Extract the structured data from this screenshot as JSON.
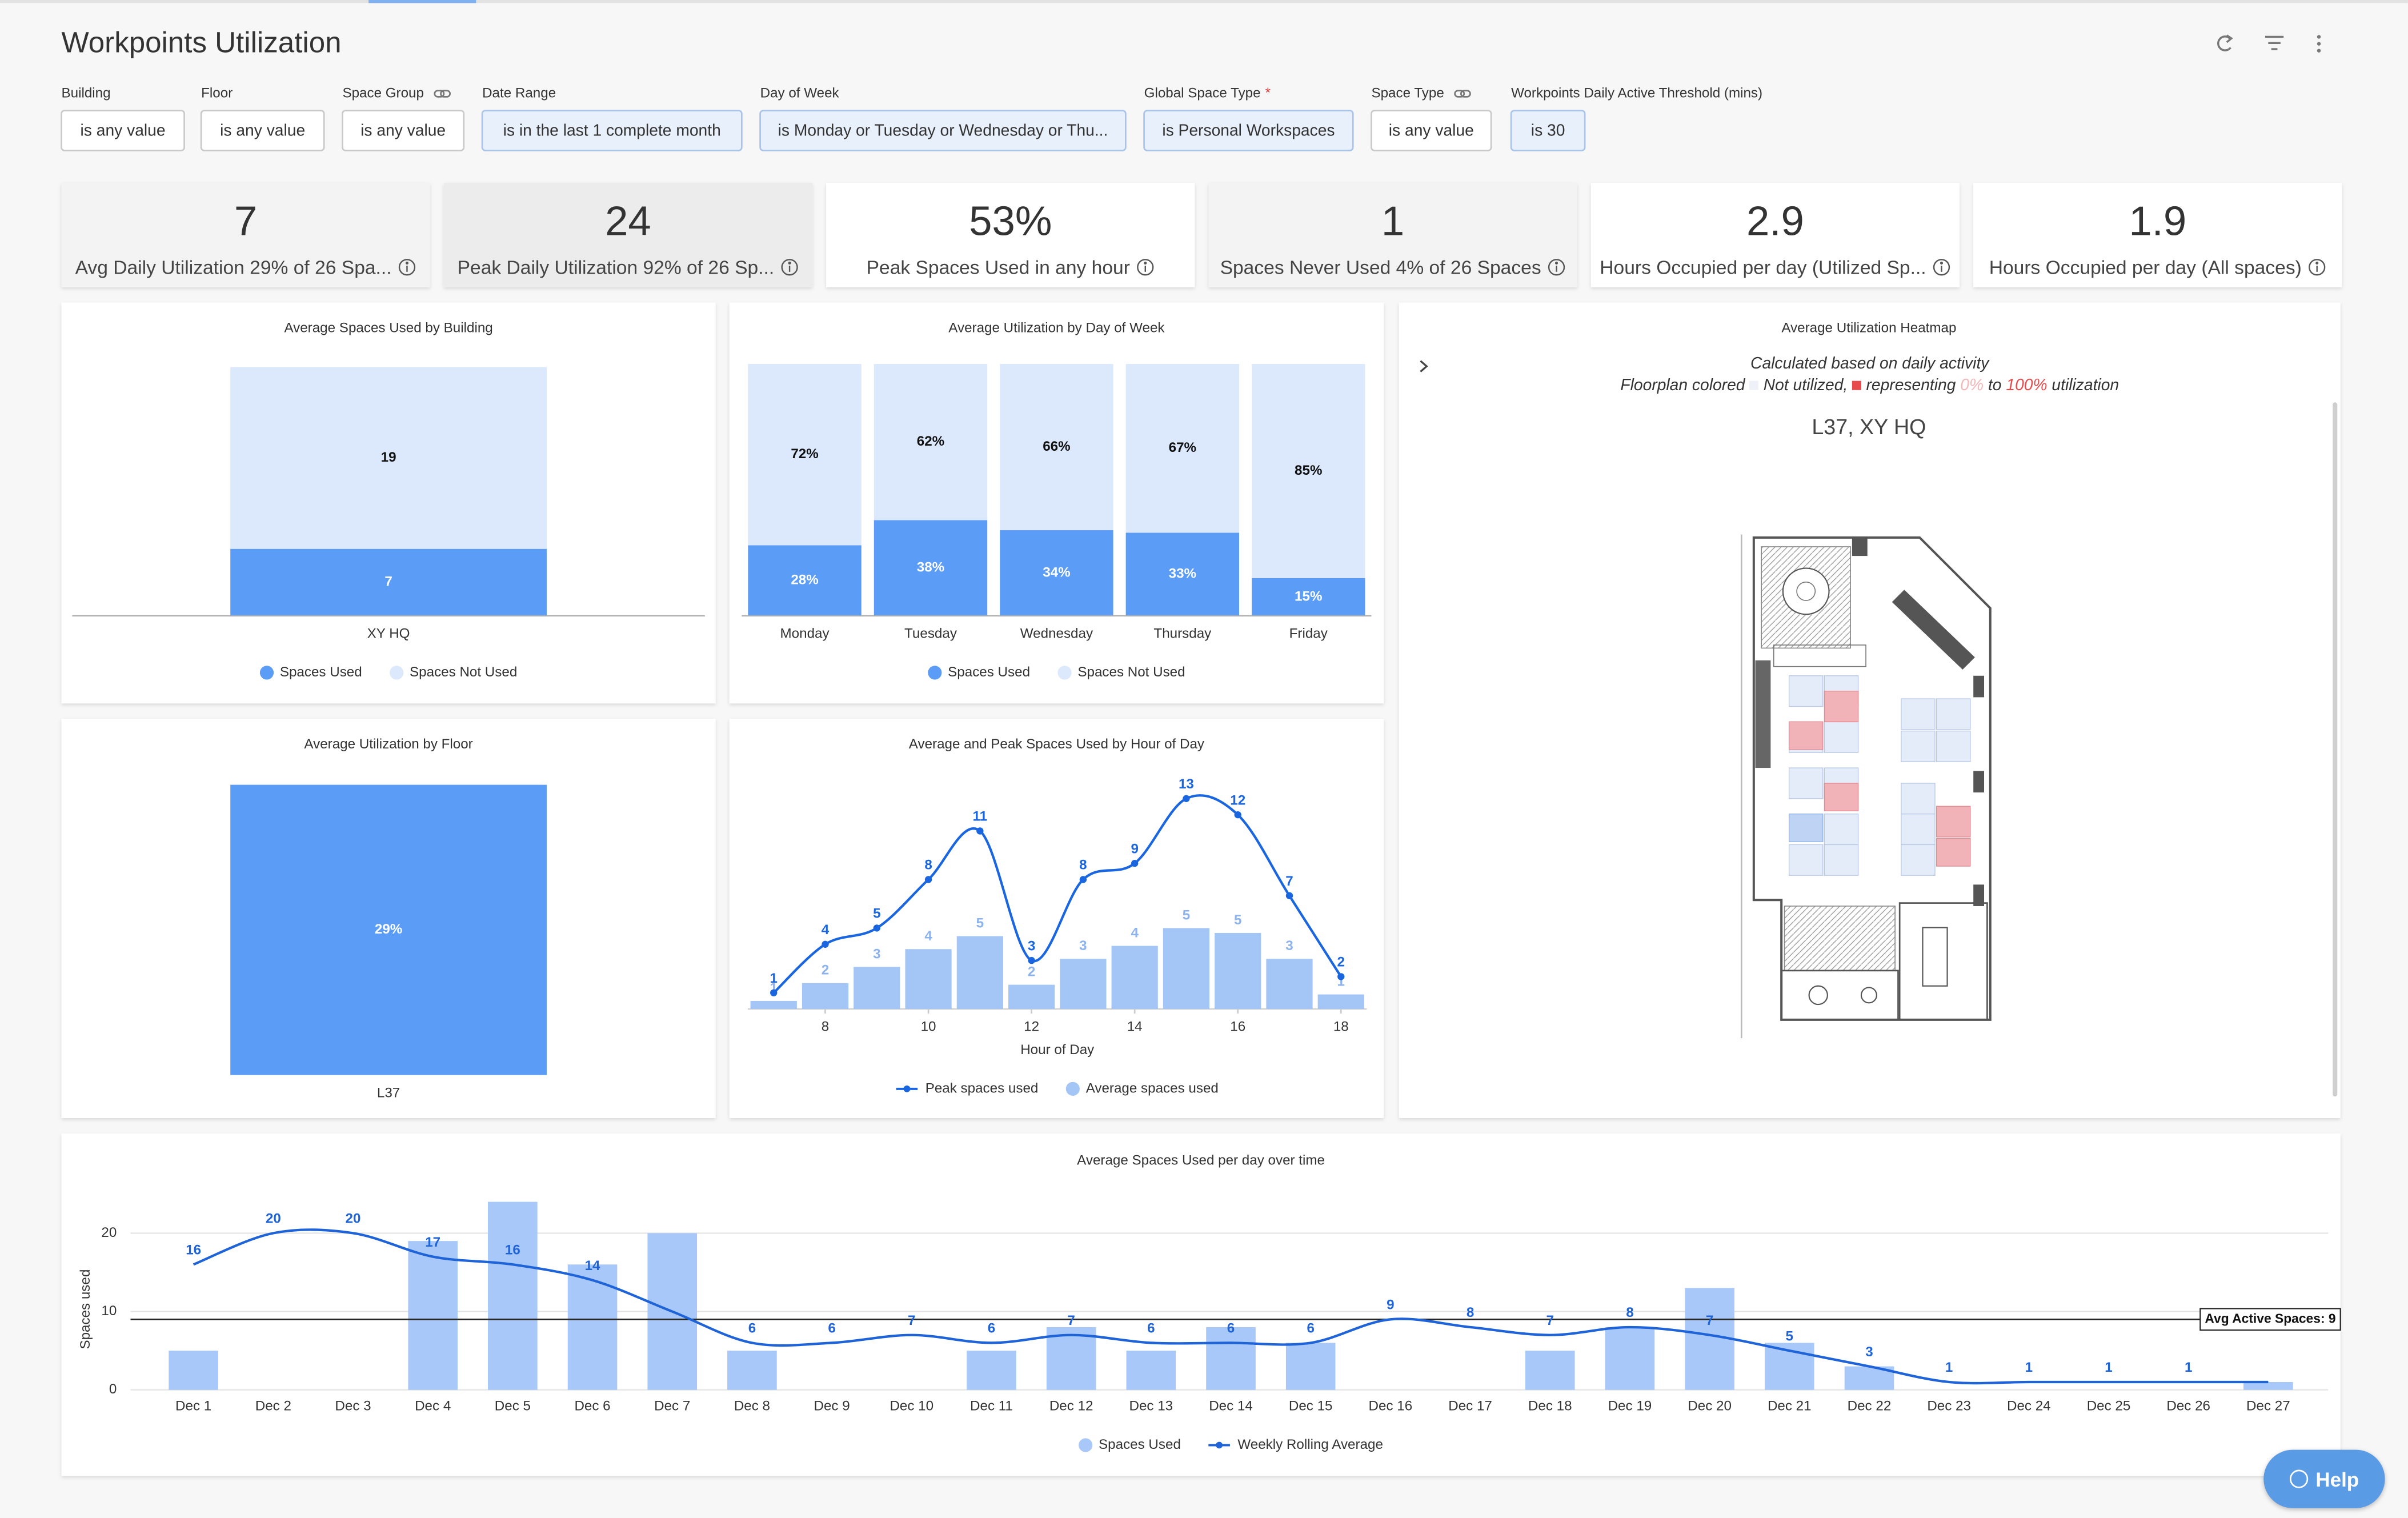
{
  "header": {
    "title": "Workpoints Utilization"
  },
  "filters": [
    {
      "label": "Building",
      "value": "is any value",
      "selected": false
    },
    {
      "label": "Floor",
      "value": "is any value",
      "selected": false
    },
    {
      "label": "Space Group",
      "value": "is any value",
      "selected": false
    },
    {
      "label": "Date Range",
      "value": "is in the last 1 complete month",
      "selected": true
    },
    {
      "label": "Day of Week",
      "value": "is Monday or Tuesday or Wednesday or Thu...",
      "selected": true
    },
    {
      "label": "Global Space Type",
      "required": "*",
      "value": "is Personal Workspaces",
      "selected": true
    },
    {
      "label": "Space Type",
      "value": "is any value",
      "selected": false
    },
    {
      "label": "Workpoints Daily Active Threshold (mins)",
      "value": "is 30",
      "selected": true
    }
  ],
  "kpis": [
    {
      "value": "7",
      "label": "Avg Daily Utilization 29% of 26 Spa..."
    },
    {
      "value": "24",
      "label": "Peak Daily Utilization 92% of 26 Sp..."
    },
    {
      "value": "53%",
      "label": "Peak Spaces Used in any hour"
    },
    {
      "value": "1",
      "label": "Spaces Never Used 4% of 26 Spaces"
    },
    {
      "value": "2.9",
      "label": "Hours Occupied per day (Utilized Sp..."
    },
    {
      "value": "1.9",
      "label": "Hours Occupied per day (All spaces)"
    }
  ],
  "chart_data": [
    {
      "type": "stacked_bar",
      "title": "Average Spaces Used by Building",
      "categories": [
        "XY HQ"
      ],
      "series": [
        {
          "name": "Spaces Used",
          "color": "#5b9cf6",
          "values": [
            7
          ]
        },
        {
          "name": "Spaces Not Used",
          "color": "#dce8fc",
          "values": [
            19
          ]
        }
      ],
      "legend": "bottom"
    },
    {
      "type": "stacked_bar",
      "title": "Average Utilization by Day of Week",
      "categories": [
        "Monday",
        "Tuesday",
        "Wednesday",
        "Thursday",
        "Friday"
      ],
      "series": [
        {
          "name": "Spaces Used",
          "color": "#5b9cf6",
          "values": [
            28,
            38,
            34,
            33,
            15
          ],
          "value_labels": [
            "28%",
            "38%",
            "34%",
            "33%",
            "15%"
          ]
        },
        {
          "name": "Spaces Not Used",
          "color": "#dce8fc",
          "values": [
            72,
            62,
            66,
            67,
            85
          ],
          "value_labels": [
            "72%",
            "62%",
            "66%",
            "67%",
            "85%"
          ]
        }
      ],
      "legend": "bottom"
    },
    {
      "type": "bar",
      "title": "Average Utilization by Floor",
      "categories": [
        "L37"
      ],
      "values": [
        29
      ],
      "value_labels": [
        "29%"
      ],
      "color": "#5b9cf6"
    },
    {
      "type": "combo",
      "title": "Average and Peak Spaces Used by Hour of Day",
      "x": [
        7,
        8,
        9,
        10,
        11,
        12,
        13,
        14,
        15,
        16,
        17,
        18
      ],
      "xlim": [
        6.5,
        18.5
      ],
      "xticks": [
        8,
        10,
        12,
        14,
        16,
        18
      ],
      "xlabel": "Hour of Day",
      "series": [
        {
          "name": "Peak spaces used",
          "type": "line",
          "color": "#1a66e0",
          "markers": true,
          "data_labels": true,
          "values": [
            1,
            4,
            5,
            8,
            11,
            3,
            8,
            9,
            13,
            12,
            7,
            2
          ]
        },
        {
          "name": "Average spaces used",
          "type": "bar",
          "color": "#a4c6f7",
          "values": [
            0.5,
            1.6,
            2.6,
            3.7,
            4.5,
            1.5,
            3.1,
            3.9,
            5,
            4.7,
            3.1,
            0.9
          ],
          "value_labels": [
            "1",
            "2",
            "3",
            "4",
            "5",
            "2",
            "3",
            "4",
            "5",
            "5",
            "3",
            "1"
          ]
        }
      ],
      "legend": "bottom"
    },
    {
      "type": "combo",
      "title": "Average Spaces Used per day over time",
      "categories": [
        "Dec 1",
        "Dec 2",
        "Dec 3",
        "Dec 4",
        "Dec 5",
        "Dec 6",
        "Dec 7",
        "Dec 8",
        "Dec 9",
        "Dec 10",
        "Dec 11",
        "Dec 12",
        "Dec 13",
        "Dec 14",
        "Dec 15",
        "Dec 16",
        "Dec 17",
        "Dec 18",
        "Dec 19",
        "Dec 20",
        "Dec 21",
        "Dec 22",
        "Dec 23",
        "Dec 24",
        "Dec 25",
        "Dec 26",
        "Dec 27"
      ],
      "ylim": [
        0,
        24.5
      ],
      "yticks": [
        0,
        10,
        20
      ],
      "ylabel": "Spaces used",
      "grid": true,
      "series": [
        {
          "name": "Spaces Used",
          "type": "bar",
          "color": "#a7c8f8",
          "values": [
            5,
            0,
            0,
            19,
            24,
            16,
            20,
            5,
            0,
            0,
            5,
            8,
            5,
            8,
            6,
            0,
            0,
            5,
            8,
            13,
            6,
            3,
            0,
            0,
            0,
            0,
            1
          ]
        },
        {
          "name": "Weekly Rolling Average",
          "type": "line",
          "color": "#1f63d8",
          "values": [
            16,
            20,
            20,
            17,
            16,
            14,
            10,
            6,
            6,
            7,
            6,
            7,
            6,
            6,
            6,
            9,
            8,
            7,
            8,
            7,
            5,
            3,
            1,
            1,
            1,
            1,
            1
          ],
          "value_labels": [
            "16",
            "20",
            "20",
            "17",
            "16",
            "14",
            null,
            "6",
            "6",
            "7",
            "6",
            "7",
            "6",
            "6",
            "6",
            "9",
            "8",
            "7",
            "8",
            "7",
            "5",
            "3",
            "1",
            "1",
            "1",
            "1",
            null
          ]
        }
      ],
      "reference_line": {
        "value": 9,
        "label": "Avg Active Spaces: 9"
      },
      "legend": "bottom"
    }
  ],
  "heatmap": {
    "title": "Average Utilization Heatmap",
    "subtitle": "Calculated based on daily activity",
    "legend": {
      "prefix": "Floorplan colored",
      "none": "Not utilized,",
      "middle": "representing",
      "low": "0%",
      "to": "to",
      "high": "100%",
      "suffix": "utilization"
    },
    "floor": "L37, XY HQ"
  },
  "help": "Help"
}
